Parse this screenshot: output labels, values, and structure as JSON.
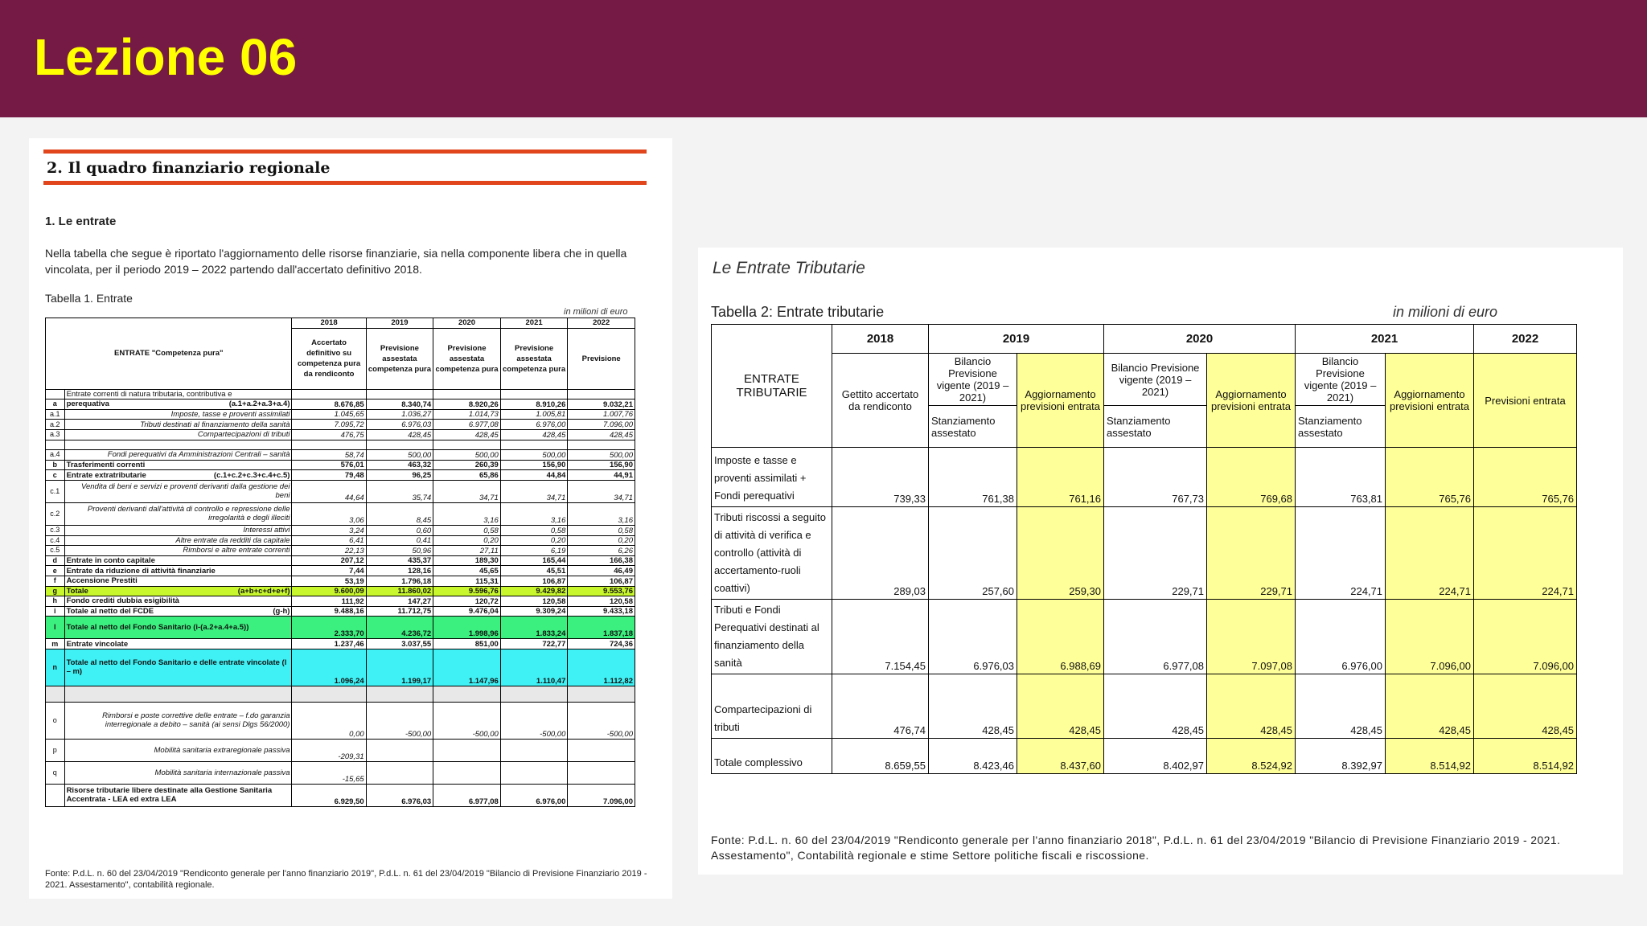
{
  "header": {
    "title": "Lezione 06"
  },
  "doc1": {
    "section_title": "2. Il quadro finanziario regionale",
    "subsection": "1. Le entrate",
    "paragraph": "Nella tabella che segue è riportato l'aggiornamento delle risorse finanziarie, sia nella componente libera che in quella vincolata, per il periodo 2019 – 2022 partendo dall'accertato definitivo 2018.",
    "table_caption": "Tabella 1. Entrate",
    "unit": "in milioni di euro",
    "col_header_main": "ENTRATE \"Competenza pura\"",
    "years": [
      "2018",
      "2019",
      "2020",
      "2021",
      "2022"
    ],
    "col_headers": [
      "Accertato definitivo su competenza pura da rendiconto",
      "Previsione assestata competenza pura",
      "Previsione assestata competenza pura",
      "Previsione assestata competenza pura",
      "Previsione"
    ],
    "rows": [
      {
        "code": "",
        "label": "Entrate correnti di natura tributaria, contributiva e",
        "formula": "",
        "v": [
          "",
          "",
          "",
          "",
          ""
        ]
      },
      {
        "code": "a",
        "label": "perequativa",
        "formula": "(a.1+a.2+a.3+a.4)",
        "v": [
          "8.676,85",
          "8.340,74",
          "8.920,26",
          "8.910,26",
          "9.032,21"
        ]
      },
      {
        "code": "a.1",
        "label": "Imposte, tasse e proventi assimilati",
        "formula": "",
        "v": [
          "1.045,65",
          "1.036,27",
          "1.014,73",
          "1.005,81",
          "1.007,76"
        ]
      },
      {
        "code": "a.2",
        "label": "Tributi destinati al finanziamento della sanità",
        "formula": "",
        "v": [
          "7.095,72",
          "6.976,03",
          "6.977,08",
          "6.976,00",
          "7.096,00"
        ]
      },
      {
        "code": "a.3",
        "label": "Compartecipazioni di tributi",
        "formula": "",
        "v": [
          "476,75",
          "428,45",
          "428,45",
          "428,45",
          "428,45"
        ]
      },
      {
        "code": "",
        "label": "",
        "formula": "",
        "v": [
          "",
          "",
          "",
          "",
          ""
        ]
      },
      {
        "code": "a.4",
        "label": "Fondi perequativi da Amministrazioni Centrali – sanità",
        "formula": "",
        "v": [
          "58,74",
          "500,00",
          "500,00",
          "500,00",
          "500,00"
        ]
      },
      {
        "code": "b",
        "label": "Trasferimenti correnti",
        "formula": "",
        "v": [
          "576,01",
          "463,32",
          "260,39",
          "156,90",
          "156,90"
        ]
      },
      {
        "code": "c",
        "label": "Entrate extratributarie",
        "formula": "(c.1+c.2+c.3+c.4+c.5)",
        "v": [
          "79,48",
          "96,25",
          "65,86",
          "44,84",
          "44,91"
        ]
      },
      {
        "code": "c.1",
        "label": "Vendita di beni e servizi e proventi derivanti dalla gestione dei beni",
        "formula": "",
        "v": [
          "44,64",
          "35,74",
          "34,71",
          "34,71",
          "34,71"
        ]
      },
      {
        "code": "c.2",
        "label": "Proventi derivanti dall'attività di controllo e repressione delle irregolarità e degli illeciti",
        "formula": "",
        "v": [
          "3,06",
          "8,45",
          "3,16",
          "3,16",
          "3,16"
        ]
      },
      {
        "code": "c.3",
        "label": "Interessi attivi",
        "formula": "",
        "v": [
          "3,24",
          "0,60",
          "0,58",
          "0,58",
          "0,58"
        ]
      },
      {
        "code": "c.4",
        "label": "Altre entrate da redditi da capitale",
        "formula": "",
        "v": [
          "6,41",
          "0,41",
          "0,20",
          "0,20",
          "0,20"
        ]
      },
      {
        "code": "c.5",
        "label": "Rimborsi e altre entrate correnti",
        "formula": "",
        "v": [
          "22,13",
          "50,96",
          "27,11",
          "6,19",
          "6,26"
        ]
      },
      {
        "code": "d",
        "label": "Entrate in conto capitale",
        "formula": "",
        "v": [
          "207,12",
          "435,37",
          "189,30",
          "165,44",
          "166,38"
        ]
      },
      {
        "code": "e",
        "label": "Entrate da riduzione di attività finanziarie",
        "formula": "",
        "v": [
          "7,44",
          "128,16",
          "45,65",
          "45,51",
          "46,49"
        ]
      },
      {
        "code": "f",
        "label": "Accensione Prestiti",
        "formula": "",
        "v": [
          "53,19",
          "1.796,18",
          "115,31",
          "106,87",
          "106,87"
        ]
      },
      {
        "code": "g",
        "label": "Totale",
        "formula": "(a+b+c+d+e+f)",
        "v": [
          "9.600,09",
          "11.860,02",
          "9.596,76",
          "9.429,82",
          "9.553,76"
        ]
      },
      {
        "code": "h",
        "label": "Fondo crediti dubbia esigibilità",
        "formula": "",
        "v": [
          "111,92",
          "147,27",
          "120,72",
          "120,58",
          "120,58"
        ]
      },
      {
        "code": "i",
        "label": "Totale al netto del FCDE",
        "formula": "(g-h)",
        "v": [
          "9.488,16",
          "11.712,75",
          "9.476,04",
          "9.309,24",
          "9.433,18"
        ]
      },
      {
        "code": "l",
        "label": "Totale al netto del Fondo Sanitario (i-(a.2+a.4+a.5))",
        "formula": "",
        "v": [
          "2.333,70",
          "4.236,72",
          "1.998,96",
          "1.833,24",
          "1.837,18"
        ]
      },
      {
        "code": "m",
        "label": "Entrate vincolate",
        "formula": "",
        "v": [
          "1.237,46",
          "3.037,55",
          "851,00",
          "722,77",
          "724,36"
        ]
      },
      {
        "code": "n",
        "label": "Totale al netto del Fondo Sanitario e delle entrate vincolate (l – m)",
        "formula": "",
        "v": [
          "1.096,24",
          "1.199,17",
          "1.147,96",
          "1.110,47",
          "1.112,82"
        ]
      },
      {
        "code": "o",
        "label": "Rimborsi e poste correttive delle entrate – f.do garanzia interregionale a debito – sanità (ai sensi Dlgs 56/2000)",
        "formula": "",
        "v": [
          "0,00",
          "-500,00",
          "-500,00",
          "-500,00",
          "-500,00"
        ]
      },
      {
        "code": "p",
        "label": "Mobilità sanitaria extraregionale passiva",
        "formula": "",
        "v": [
          "-209,31",
          "",
          "",
          "",
          ""
        ]
      },
      {
        "code": "q",
        "label": "Mobilità sanitaria internazionale passiva",
        "formula": "",
        "v": [
          "-15,65",
          "",
          "",
          "",
          ""
        ]
      },
      {
        "code": "",
        "label": "Risorse tributarie libere destinate alla Gestione Sanitaria Accentrata - LEA ed extra LEA",
        "formula": "",
        "v": [
          "6.929,50",
          "6.976,03",
          "6.977,08",
          "6.976,00",
          "7.096,00"
        ]
      }
    ],
    "source": "Fonte: P.d.L. n. 60 del 23/04/2019 \"Rendiconto generale per l'anno finanziario 2019\", P.d.L. n. 61 del 23/04/2019 \"Bilancio di Previsione Finanziario 2019 - 2021. Assestamento\", contabilità regionale."
  },
  "doc2": {
    "section_title": "Le Entrate Tributarie",
    "table_caption": "Tabella 2: Entrate tributarie",
    "unit": "in milioni di euro",
    "row_header": "ENTRATE TRIBUTARIE",
    "years": [
      "2018",
      "2019",
      "2020",
      "2021",
      "2022"
    ],
    "h_2018": "Gettito accertato da rendiconto",
    "h_bilancio": "Bilancio Previsione vigente (2019 – 2021)",
    "h_bilancio_2020": "Bilancio Previsione vigente (2019 – 2021)",
    "h_stanz": "Stanziamento assestato",
    "h_aggiorn": "Aggiornamento previsioni entrata",
    "h_prev": "Previsioni entrata",
    "rows": [
      {
        "label": "Imposte e tasse e proventi assimilati + Fondi perequativi",
        "v": [
          "739,33",
          "761,38",
          "761,16",
          "767,73",
          "769,68",
          "763,81",
          "765,76",
          "765,76"
        ]
      },
      {
        "label": "Tributi riscossi a seguito di attività di verifica e controllo (attività di accertamento-ruoli coattivi)",
        "v": [
          "289,03",
          "257,60",
          "259,30",
          "229,71",
          "229,71",
          "224,71",
          "224,71",
          "224,71"
        ]
      },
      {
        "label": "Tributi e Fondi Perequativi destinati al finanziamento della sanità",
        "v": [
          "7.154,45",
          "6.976,03",
          "6.988,69",
          "6.977,08",
          "7.097,08",
          "6.976,00",
          "7.096,00",
          "7.096,00"
        ]
      },
      {
        "label": "Compartecipazioni di tributi",
        "v": [
          "476,74",
          "428,45",
          "428,45",
          "428,45",
          "428,45",
          "428,45",
          "428,45",
          "428,45"
        ]
      },
      {
        "label": "Totale complessivo",
        "v": [
          "8.659,55",
          "8.423,46",
          "8.437,60",
          "8.402,97",
          "8.524,92",
          "8.392,97",
          "8.514,92",
          "8.514,92"
        ]
      }
    ],
    "source": "Fonte: P.d.L. n. 60 del 23/04/2019 \"Rendiconto generale per l'anno finanziario 2018\", P.d.L. n. 61 del 23/04/2019 \"Bilancio di Previsione Finanziario 2019 - 2021. Assestamento\", Contabilità regionale e stime Settore politiche fiscali e riscossione."
  },
  "colors": {
    "header_bg": "#741a45",
    "title": "#ffff00",
    "rule": "#e0451c",
    "lime": "#c7f72c",
    "green": "#3bf07e",
    "cyan": "#3ff1f5",
    "yellow": "#ffff99"
  }
}
